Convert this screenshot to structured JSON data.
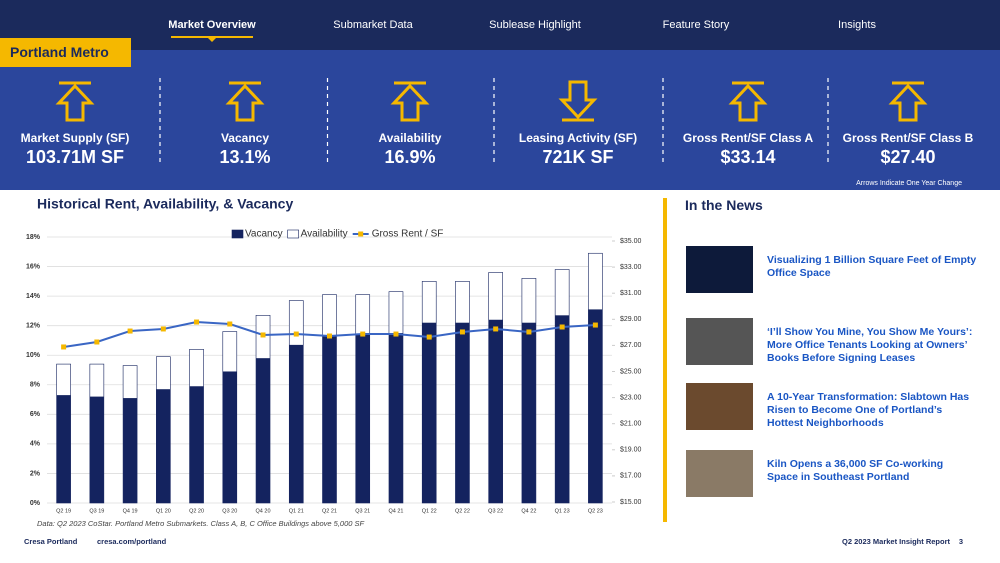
{
  "header": {
    "nav": [
      "Market Overview",
      "Submarket Data",
      "Sublease Highlight",
      "Feature Story",
      "Insights"
    ],
    "active_nav": 0,
    "badge": "Portland Metro"
  },
  "kpis": [
    {
      "label": "Market Supply (SF)",
      "value": "103.71M SF",
      "direction": "up"
    },
    {
      "label": "Vacancy",
      "value": "13.1%",
      "direction": "up"
    },
    {
      "label": "Availability",
      "value": "16.9%",
      "direction": "up"
    },
    {
      "label": "Leasing Activity (SF)",
      "value": "721K SF",
      "direction": "down"
    },
    {
      "label": "Gross Rent/SF Class A",
      "value": "$33.14",
      "direction": "up"
    },
    {
      "label": "Gross Rent/SF Class B",
      "value": "$27.40",
      "direction": "up"
    }
  ],
  "kpi_note": "Arrows Indicate One Year Change",
  "chart_data": {
    "type": "bar-line",
    "title": "Historical Rent, Availability, & Vacancy",
    "categories": [
      "Q2 19",
      "Q3 19",
      "Q4 19",
      "Q1 20",
      "Q2 20",
      "Q3 20",
      "Q4 20",
      "Q1 21",
      "Q2 21",
      "Q3 21",
      "Q4 21",
      "Q1 22",
      "Q2 22",
      "Q3 22",
      "Q4 22",
      "Q1 23",
      "Q2 23"
    ],
    "series": [
      {
        "name": "Vacancy",
        "color": "#14235f",
        "values": [
          7.3,
          7.2,
          7.1,
          7.7,
          7.9,
          8.9,
          9.8,
          10.7,
          11.3,
          11.4,
          11.5,
          12.2,
          12.2,
          12.4,
          12.2,
          12.7,
          13.1
        ]
      },
      {
        "name": "Availability",
        "color": "#ffffff",
        "values": [
          9.4,
          9.4,
          9.3,
          9.9,
          10.4,
          11.6,
          12.7,
          13.7,
          14.1,
          14.1,
          14.3,
          15.0,
          15.0,
          15.6,
          15.2,
          15.8,
          16.9
        ]
      },
      {
        "name": "Gross Rent / SF",
        "color": "#3a66c4",
        "marker_color": "#f5b800",
        "axis": "y2",
        "values": [
          26.88,
          27.26,
          28.1,
          28.26,
          28.79,
          28.64,
          27.8,
          27.87,
          27.72,
          27.87,
          27.87,
          27.64,
          28.03,
          28.26,
          28.03,
          28.41,
          28.56
        ]
      }
    ],
    "ylim": [
      0,
      18
    ],
    "yticks": [
      {
        "value": 0,
        "label": "0%"
      },
      {
        "value": 2,
        "label": "2%"
      },
      {
        "value": 4,
        "label": "4%"
      },
      {
        "value": 6,
        "label": "6%"
      },
      {
        "value": 8,
        "label": "8%"
      },
      {
        "value": 10,
        "label": "10%"
      },
      {
        "value": 12,
        "label": "12%"
      },
      {
        "value": 14,
        "label": "14%"
      },
      {
        "value": 16,
        "label": "16%"
      },
      {
        "value": 18,
        "label": "18%"
      }
    ],
    "y2lim": [
      15,
      35
    ],
    "y2ticks": [
      {
        "value": 15,
        "label": "$15.00"
      },
      {
        "value": 17,
        "label": "$17.00"
      },
      {
        "value": 19,
        "label": "$19.00"
      },
      {
        "value": 21,
        "label": "$21.00"
      },
      {
        "value": 23,
        "label": "$23.00"
      },
      {
        "value": 25,
        "label": "$25.00"
      },
      {
        "value": 27,
        "label": "$27.00"
      },
      {
        "value": 29,
        "label": "$29.00"
      },
      {
        "value": 31,
        "label": "$31.00"
      },
      {
        "value": 33,
        "label": "$33.00"
      },
      {
        "value": 35,
        "label": "$35.00"
      }
    ],
    "grid": true,
    "source": "Data: Q2 2023 CoStar. Portland Metro Submarkets. Class A, B, C Office Buildings above 5,000 SF"
  },
  "news": {
    "title": "In the News",
    "items": [
      "Visualizing 1 Billion Square Feet of Empty Office Space",
      "‘I’ll Show You Mine, You Show Me Yours’: More Office Tenants Looking at Owners’ Books Before Signing Leases",
      "A 10-Year Transformation: Slabtown Has Risen to Become One of Portland’s Hottest Neighborhoods",
      "Kiln Opens a 36,000 SF Co-working Space in Southeast Portland"
    ]
  },
  "footer": {
    "brand": "Cresa Portland",
    "url": "cresa.com/portland",
    "report": "Q2 2023 Market Insight Report",
    "page": "3"
  }
}
